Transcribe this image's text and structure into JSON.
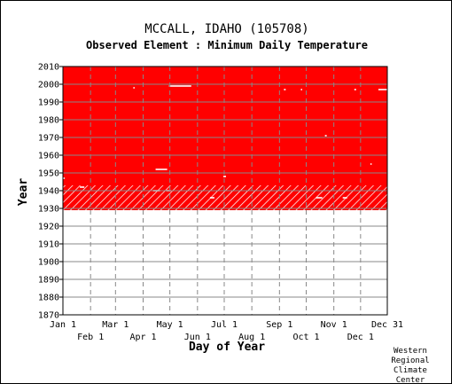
{
  "title": "MCCALL, IDAHO   (105708)",
  "subtitle": "Observed Element : Minimum Daily Temperature",
  "credit": "Western Regional Climate Center",
  "chart_data": {
    "type": "heatmap",
    "xlabel": "Day of Year",
    "ylabel": "Year",
    "xlim": [
      1,
      365
    ],
    "ylim": [
      1870,
      2010
    ],
    "grid": true,
    "colors": {
      "data_present": "#ff0000",
      "partial_data": "#ffffff",
      "grid": "#888888",
      "axes": "#000000"
    },
    "x_ticks_top": [
      {
        "label": "Jan 1",
        "day": 1
      },
      {
        "label": "Mar 1",
        "day": 60
      },
      {
        "label": "May 1",
        "day": 121
      },
      {
        "label": "Jul 1",
        "day": 182
      },
      {
        "label": "Sep 1",
        "day": 244
      },
      {
        "label": "Nov 1",
        "day": 305
      },
      {
        "label": "Dec 31",
        "day": 365
      }
    ],
    "x_ticks_bottom": [
      {
        "label": "Feb 1",
        "day": 32
      },
      {
        "label": "Apr 1",
        "day": 91
      },
      {
        "label": "Jun 1",
        "day": 152
      },
      {
        "label": "Aug 1",
        "day": 213
      },
      {
        "label": "Oct 1",
        "day": 274
      },
      {
        "label": "Dec 1",
        "day": 335
      }
    ],
    "y_ticks": [
      1870,
      1880,
      1890,
      1900,
      1910,
      1920,
      1930,
      1940,
      1950,
      1960,
      1970,
      1980,
      1990,
      2000,
      2010
    ],
    "data_period": {
      "start_year": 1929,
      "end_year": 2010
    },
    "partial_period": {
      "start_year": 1929,
      "end_year": 1943
    },
    "missing_gaps": [
      {
        "year": 1999,
        "start_day": 120,
        "end_day": 145
      },
      {
        "year": 1998,
        "start_day": 80,
        "end_day": 81
      },
      {
        "year": 1997,
        "start_day": 249,
        "end_day": 251
      },
      {
        "year": 1997,
        "start_day": 268,
        "end_day": 269
      },
      {
        "year": 1997,
        "start_day": 328,
        "end_day": 330
      },
      {
        "year": 1997,
        "start_day": 355,
        "end_day": 365
      },
      {
        "year": 1971,
        "start_day": 295,
        "end_day": 297
      },
      {
        "year": 1955,
        "start_day": 346,
        "end_day": 347
      },
      {
        "year": 1952,
        "start_day": 105,
        "end_day": 118
      },
      {
        "year": 1948,
        "start_day": 181,
        "end_day": 184
      },
      {
        "year": 1947,
        "start_day": 1,
        "end_day": 3
      },
      {
        "year": 1942,
        "start_day": 20,
        "end_day": 25
      },
      {
        "year": 1940,
        "start_day": 102,
        "end_day": 110
      },
      {
        "year": 1940,
        "start_day": 117,
        "end_day": 122
      },
      {
        "year": 1936,
        "start_day": 166,
        "end_day": 171
      },
      {
        "year": 1936,
        "start_day": 285,
        "end_day": 292
      },
      {
        "year": 1936,
        "start_day": 315,
        "end_day": 320
      }
    ]
  }
}
